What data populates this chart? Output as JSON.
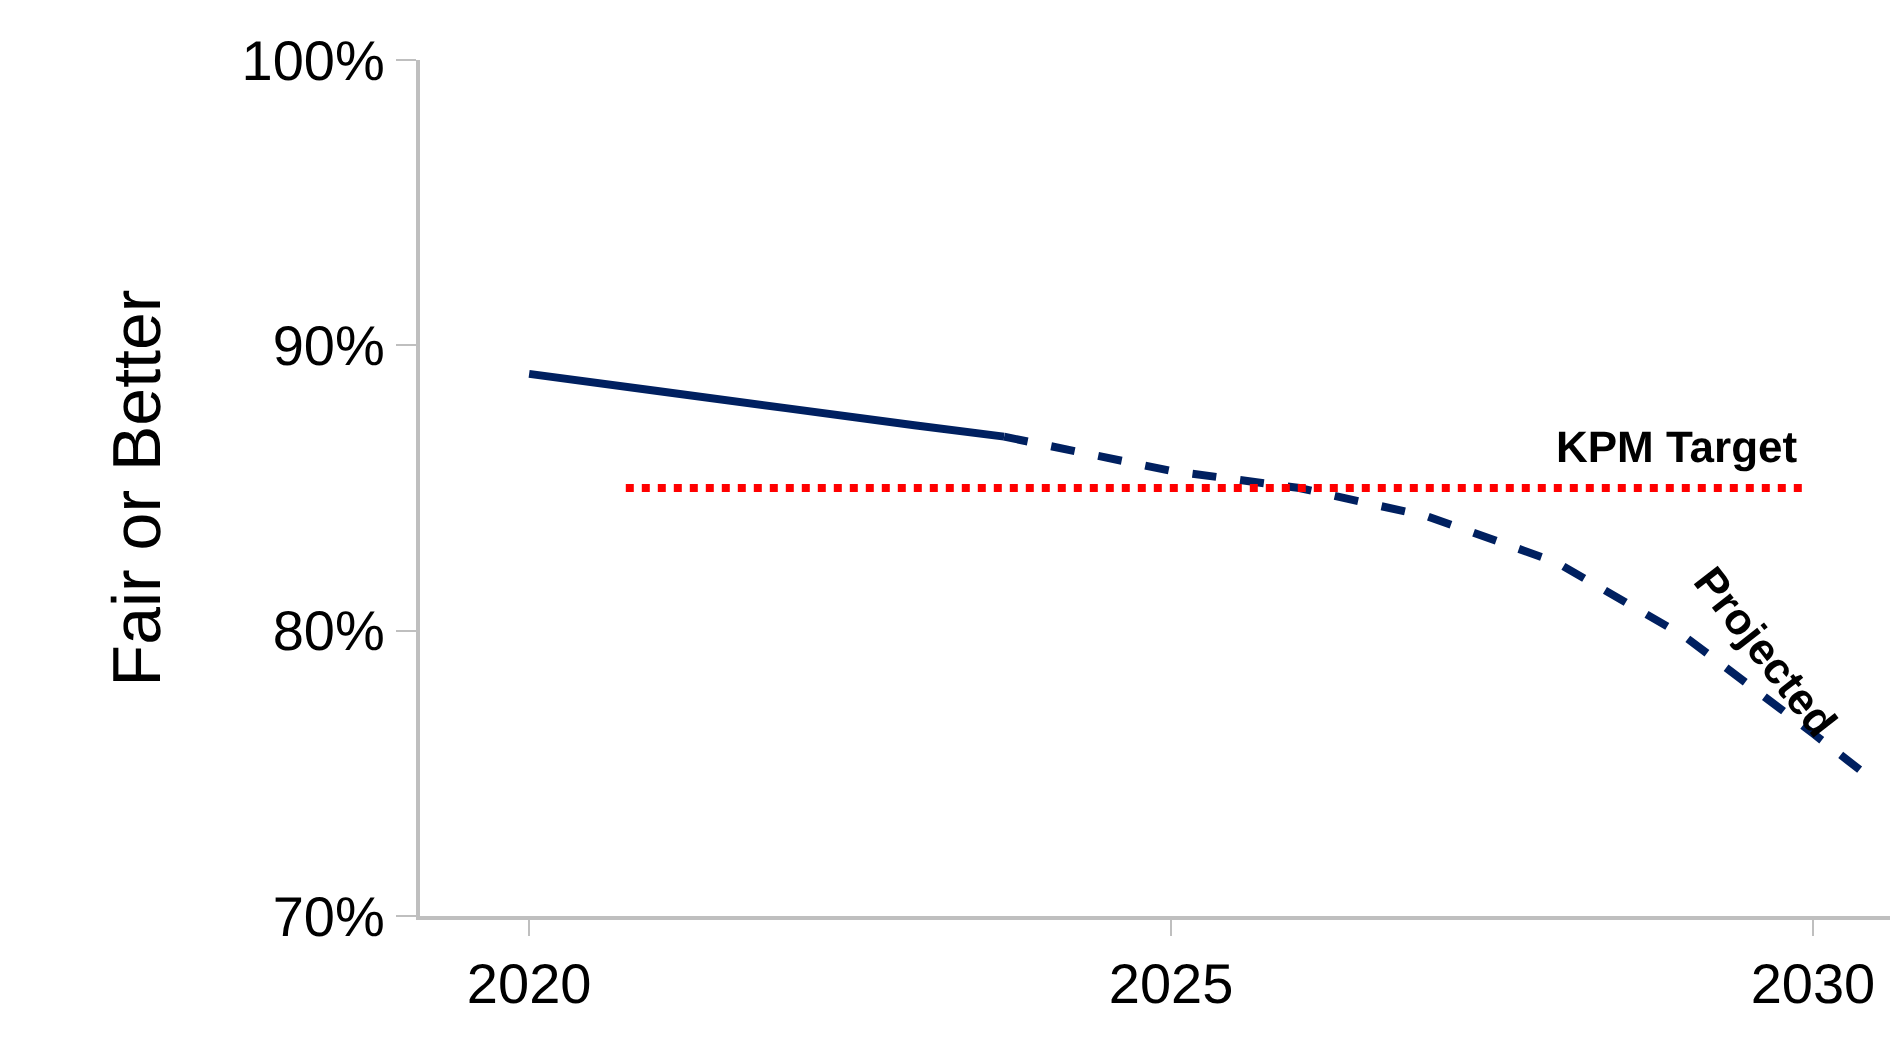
{
  "chart_data": {
    "type": "line",
    "ylabel": "Fair or Better",
    "series": [
      {
        "color": "#002060",
        "line_style": "solid",
        "x": [
          2020,
          2021,
          2022,
          2023,
          2023.7
        ],
        "values": [
          89.0,
          88.4,
          87.8,
          87.2,
          86.8
        ]
      },
      {
        "color": "#002060",
        "line_style": "dashed",
        "x": [
          2023.7,
          2025,
          2026,
          2027,
          2028,
          2029,
          2030,
          2030.4
        ],
        "values": [
          86.8,
          85.6,
          85.0,
          84.0,
          82.4,
          79.8,
          76.4,
          75.0
        ]
      }
    ],
    "xlim": [
      2019.15,
      2030.6
    ],
    "xticks": [
      2020,
      2025,
      2030
    ],
    "ylim": [
      70,
      100
    ],
    "yticks": [
      {
        "value": 70,
        "label": "70%"
      },
      {
        "value": 80,
        "label": "80%"
      },
      {
        "value": 90,
        "label": "90%"
      },
      {
        "value": 100,
        "label": "100%"
      }
    ],
    "ref_lines": [
      {
        "axis": "y",
        "value": 85,
        "label": "KPM Target",
        "color": "#ff0000",
        "line_style": "dotted"
      }
    ],
    "annotations": [
      "Projected"
    ],
    "marker": "none"
  }
}
